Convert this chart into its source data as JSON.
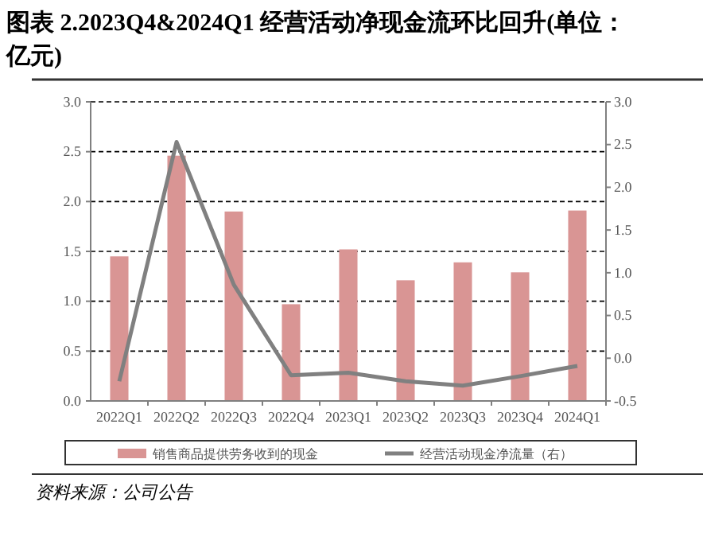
{
  "chart_data": {
    "type": "bar",
    "title": "图表 2.2023Q4&2024Q1 经营活动净现金流环比回升(单位：亿元)",
    "categories": [
      "2022Q1",
      "2022Q2",
      "2022Q3",
      "2022Q4",
      "2023Q1",
      "2023Q2",
      "2023Q3",
      "2023Q4",
      "2024Q1"
    ],
    "series": [
      {
        "name": "销售商品提供劳务收到的现金",
        "color": "#d99594",
        "values": [
          1.45,
          2.46,
          1.9,
          0.97,
          1.52,
          1.21,
          1.39,
          1.29,
          1.91
        ]
      },
      {
        "name": "经营活动现金净流量（右）",
        "type": "line",
        "axis": "y2",
        "color": "#808080",
        "values": [
          -0.27,
          2.53,
          0.86,
          -0.2,
          -0.17,
          -0.27,
          -0.32,
          -0.21,
          -0.09
        ]
      }
    ],
    "ylim": [
      0,
      3
    ],
    "yticks": [
      {
        "value": 0,
        "label": "0.0"
      },
      {
        "value": 0.5,
        "label": "0.5"
      },
      {
        "value": 1,
        "label": "1.0"
      },
      {
        "value": 1.5,
        "label": "1.5"
      },
      {
        "value": 2,
        "label": "2.0"
      },
      {
        "value": 2.5,
        "label": "2.5"
      },
      {
        "value": 3,
        "label": "3.0"
      }
    ],
    "y2lim": [
      -0.5,
      3
    ],
    "y2ticks": [
      {
        "value": -0.5,
        "label": "-0.5"
      },
      {
        "value": 0,
        "label": "0.0"
      },
      {
        "value": 0.5,
        "label": "0.5"
      },
      {
        "value": 1,
        "label": "1.0"
      },
      {
        "value": 1.5,
        "label": "1.5"
      },
      {
        "value": 2,
        "label": "2.0"
      },
      {
        "value": 2.5,
        "label": "2.5"
      },
      {
        "value": 3,
        "label": "3.0"
      }
    ],
    "grid": "y",
    "legend": "bottom",
    "marker": "none",
    "line_style": "solid",
    "annotations": [
      "资料来源：公司公告"
    ]
  }
}
